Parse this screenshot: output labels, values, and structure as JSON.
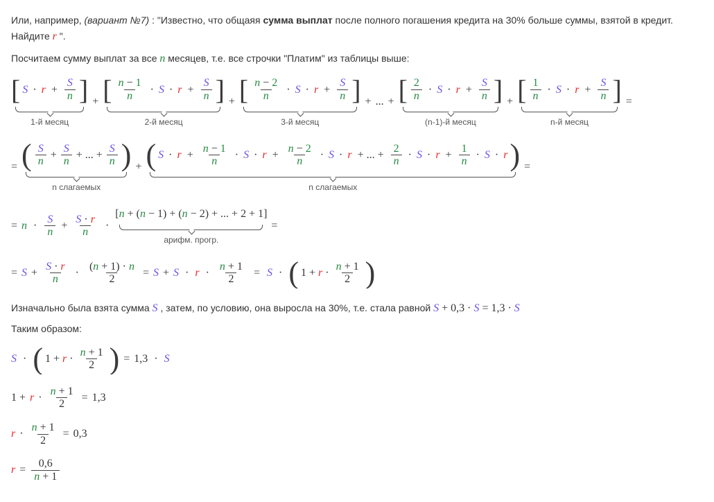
{
  "colors": {
    "S": "#6a51e6",
    "r": "#e62a2a",
    "n": "#278a43",
    "text": "#333333",
    "background": "#ffffff",
    "brace": "#555555"
  },
  "typography": {
    "body_font": "Arial",
    "body_size_pt": 11,
    "math_font": "Georgia",
    "math_size_pt": 12,
    "caption_size_pt": 9
  },
  "intro": {
    "prefix": "Или, например, ",
    "variant_label": "(вариант №7)",
    "quote_start": ": \"Известно, что общаяя ",
    "bold": "сумма выплат",
    "quote_mid": " после полного погашения кредита на 30% больше суммы, взятой в кредит. Найдите ",
    "var": "r",
    "quote_end": "\"."
  },
  "line2": {
    "prefix": "Посчитаем сумму выплат за все ",
    "var": "n",
    "suffix": " месяцев, т.е. все строчки \"Платим\" из таблицы выше:"
  },
  "terms_row": {
    "captions": [
      "1-й месяц",
      "2-й месяц",
      "3-й месяц",
      "(n-1)-й месяц",
      "n-й месяц"
    ],
    "ellipsis": "..."
  },
  "grouped_row": {
    "left_caption": "n слагаемых",
    "right_caption": "n слагаемых"
  },
  "arith_row": {
    "caption": "арифм. прогр."
  },
  "post1": {
    "prefix": "Изначально была взята сумма ",
    "S": "S",
    "mid": ", затем, по условию, она выросла на 30%, т.е. стала равной ",
    "formula_plain": "S + 0,3 · S = 1,3 · S"
  },
  "post2": "Таким образом:",
  "final": {
    "rhs1": "1,3",
    "rhs2": "1,3",
    "rhs3": "0,3",
    "num4": "0,6"
  }
}
